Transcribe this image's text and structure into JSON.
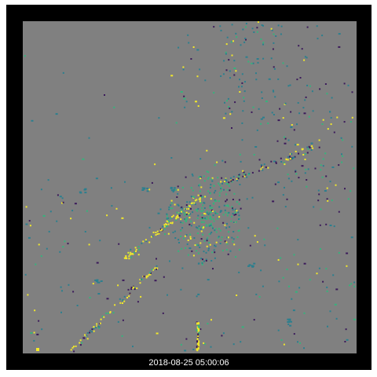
{
  "timestamp": "2018-08-25 05:00:06",
  "colors": {
    "frame": "#000000",
    "background": "#808080",
    "dark_purple": "#3b1a5a",
    "teal": "#2c7f8e",
    "green": "#36b37c",
    "yellow": "#f2e92a"
  }
}
